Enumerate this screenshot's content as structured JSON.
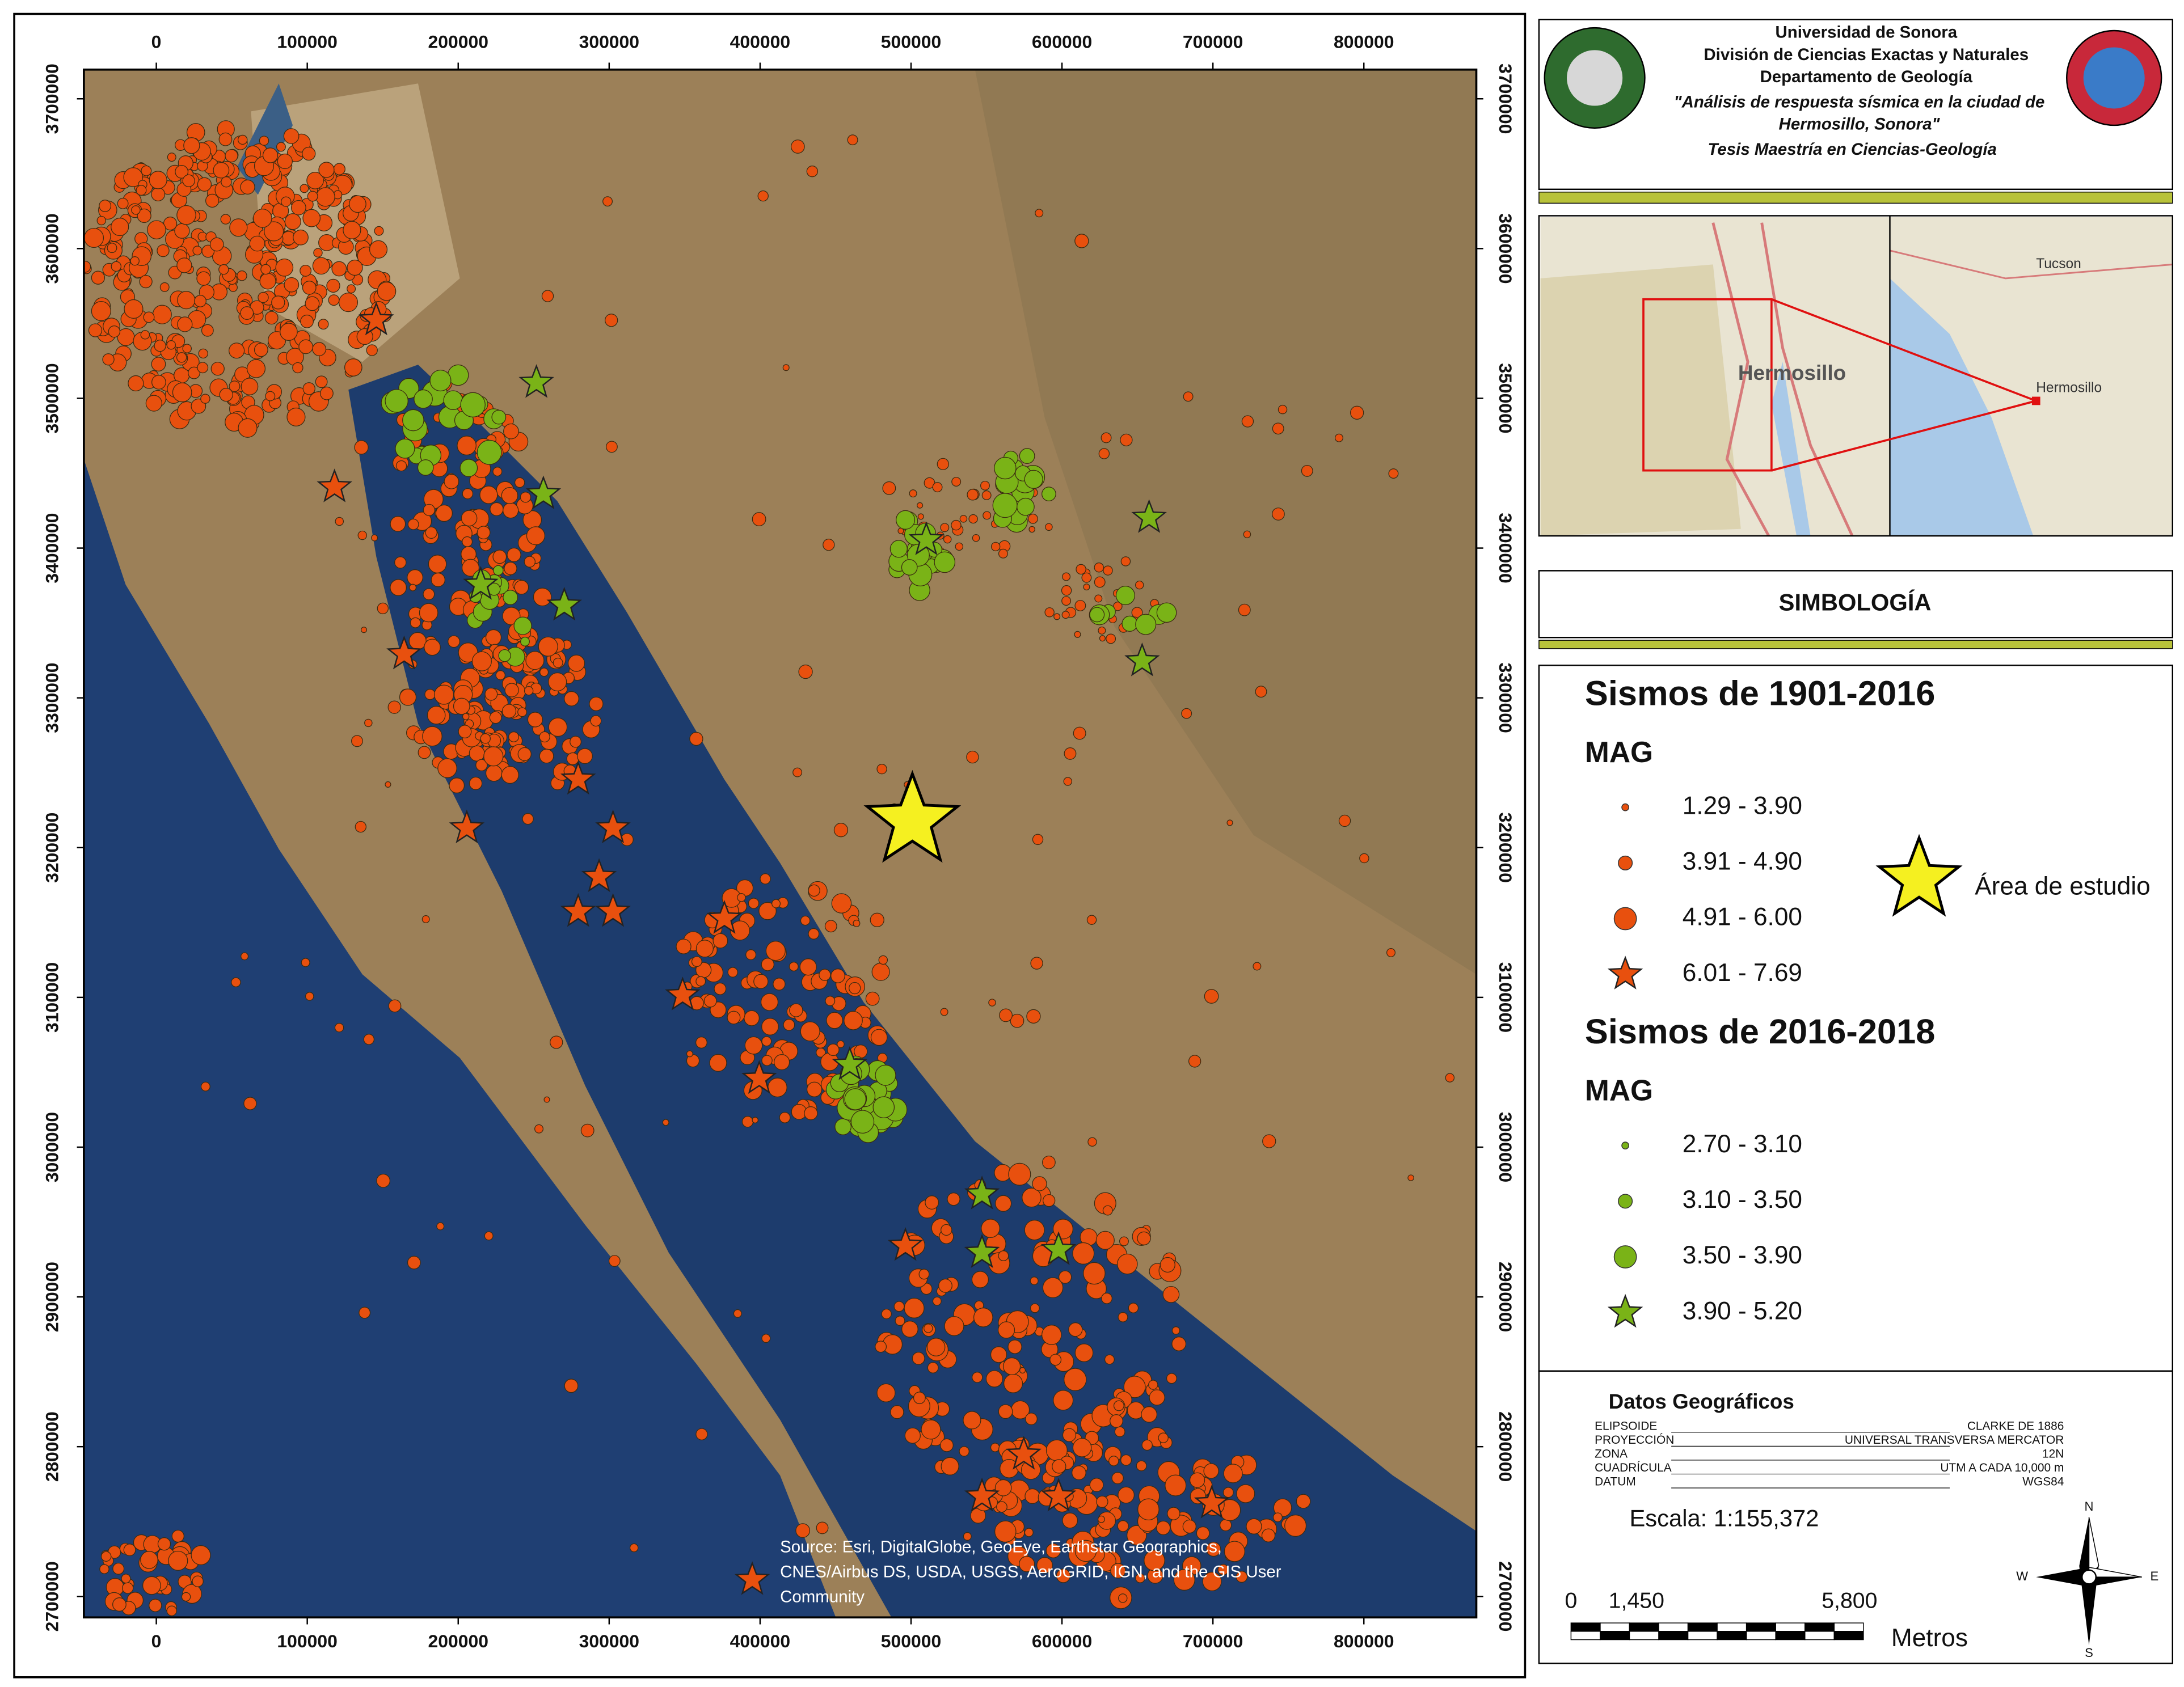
{
  "map": {
    "xlim": [
      -48000,
      874500
    ],
    "ylim": [
      2686000,
      3719500
    ],
    "xticks": [
      0,
      100000,
      200000,
      300000,
      400000,
      500000,
      600000,
      700000,
      800000
    ],
    "yticks": [
      2700000,
      2800000,
      2900000,
      3000000,
      3100000,
      3200000,
      3300000,
      3400000,
      3500000,
      3600000,
      3700000
    ],
    "source": [
      "Source: Esri, DigitalGlobe, GeoEye, Earthstar Geographics,",
      "CNES/Airbus DS, USDA, USGS, AeroGRID, IGN, and the GIS User",
      "Community"
    ]
  },
  "header": {
    "lines": [
      "Universidad de Sonora",
      "División de Ciencias Exactas y Naturales",
      "Departamento de Geología",
      "\"Análisis de respuesta sísmica en la ciudad de",
      "Hermosillo, Sonora\"",
      "Tesis Maestría en Ciencias-Geología"
    ]
  },
  "inset": {
    "labels": [
      "Hermosillo",
      "Tucson",
      "Hermosillo"
    ]
  },
  "legend": {
    "title": "SIMBOLOGÍA",
    "groups": [
      {
        "title": "Sismos de 1901-2016",
        "subtitle": "MAG",
        "color": "#e8500e",
        "items": [
          "1.29 - 3.90",
          "3.91 - 4.90",
          "4.91 - 6.00",
          "6.01 - 7.69"
        ]
      },
      {
        "title": "Sismos de 2016-2018",
        "subtitle": "MAG",
        "color": "#7ab317",
        "items": [
          "2.70 - 3.10",
          "3.10 - 3.50",
          "3.50 - 3.90",
          "3.90 - 5.20"
        ]
      }
    ],
    "study_area": "Área de estudio"
  },
  "geo": {
    "title": "Datos Geográficos",
    "rows": [
      [
        "ELIPSOIDE",
        "CLARKE DE 1886"
      ],
      [
        "PROYECCIÓN",
        "UNIVERSAL TRANSVERSA MERCATOR"
      ],
      [
        "ZONA",
        "12N"
      ],
      [
        "CUADRÍCULA",
        "UTM A CADA 10,000 m"
      ],
      [
        "DATUM",
        "WGS84"
      ]
    ]
  },
  "scale": {
    "text": "Escala: 1:155,372",
    "labels": [
      "0",
      "1,450",
      "5,800"
    ],
    "unit": "Metros"
  },
  "compass": [
    "N",
    "S",
    "E",
    "W"
  ]
}
